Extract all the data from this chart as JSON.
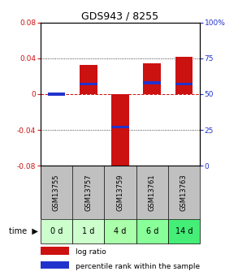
{
  "title": "GDS943 / 8255",
  "samples": [
    "GSM13755",
    "GSM13757",
    "GSM13759",
    "GSM13761",
    "GSM13763"
  ],
  "time_labels": [
    "0 d",
    "1 d",
    "4 d",
    "6 d",
    "14 d"
  ],
  "log_ratios": [
    0.0,
    0.033,
    -0.085,
    0.034,
    0.042
  ],
  "percentile_ranks": [
    50,
    57,
    27,
    58,
    57
  ],
  "ylim_left": [
    -0.08,
    0.08
  ],
  "ylim_right": [
    0,
    100
  ],
  "yticks_left": [
    -0.08,
    -0.04,
    0,
    0.04,
    0.08
  ],
  "yticks_right": [
    0,
    25,
    50,
    75,
    100
  ],
  "bar_width": 0.55,
  "bar_color_red": "#cc1111",
  "bar_color_blue": "#2233cc",
  "grid_color": "#111111",
  "zero_line_color": "#cc1111",
  "background_color": "#ffffff",
  "plot_bg_color": "#ffffff",
  "sample_bg_color": "#c0c0c0",
  "time_bg_colors": [
    "#ccffcc",
    "#ccffcc",
    "#aaffaa",
    "#88ff99",
    "#44ee77"
  ],
  "left_tick_color": "#cc1111",
  "right_tick_color": "#2233cc",
  "legend_red_label": "log ratio",
  "legend_blue_label": "percentile rank within the sample"
}
